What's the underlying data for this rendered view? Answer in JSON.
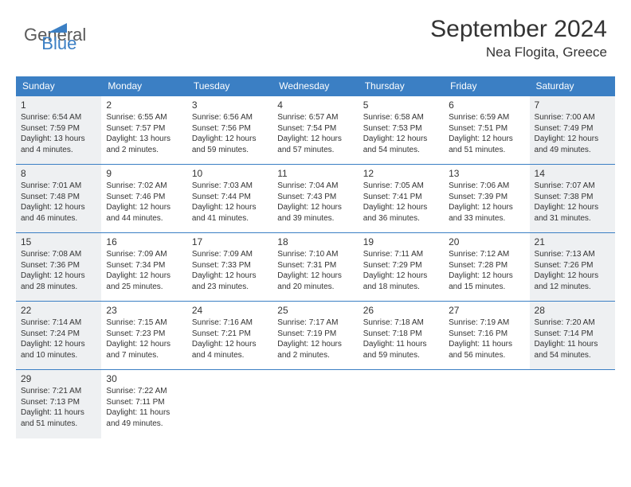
{
  "logo": {
    "part1": "General",
    "part2": "Blue"
  },
  "title": "September 2024",
  "location": "Nea Flogita, Greece",
  "colors": {
    "header_bg": "#3b7fc4",
    "header_text": "#ffffff",
    "shaded_bg": "#eef0f2",
    "text": "#333333",
    "logo_gray": "#5a5a5a",
    "logo_blue": "#3b7fc4"
  },
  "day_headers": [
    "Sunday",
    "Monday",
    "Tuesday",
    "Wednesday",
    "Thursday",
    "Friday",
    "Saturday"
  ],
  "weeks": [
    [
      {
        "num": "1",
        "shade": true,
        "sr": "Sunrise: 6:54 AM",
        "ss": "Sunset: 7:59 PM",
        "dl": "Daylight: 13 hours and 4 minutes."
      },
      {
        "num": "2",
        "shade": false,
        "sr": "Sunrise: 6:55 AM",
        "ss": "Sunset: 7:57 PM",
        "dl": "Daylight: 13 hours and 2 minutes."
      },
      {
        "num": "3",
        "shade": false,
        "sr": "Sunrise: 6:56 AM",
        "ss": "Sunset: 7:56 PM",
        "dl": "Daylight: 12 hours and 59 minutes."
      },
      {
        "num": "4",
        "shade": false,
        "sr": "Sunrise: 6:57 AM",
        "ss": "Sunset: 7:54 PM",
        "dl": "Daylight: 12 hours and 57 minutes."
      },
      {
        "num": "5",
        "shade": false,
        "sr": "Sunrise: 6:58 AM",
        "ss": "Sunset: 7:53 PM",
        "dl": "Daylight: 12 hours and 54 minutes."
      },
      {
        "num": "6",
        "shade": false,
        "sr": "Sunrise: 6:59 AM",
        "ss": "Sunset: 7:51 PM",
        "dl": "Daylight: 12 hours and 51 minutes."
      },
      {
        "num": "7",
        "shade": true,
        "sr": "Sunrise: 7:00 AM",
        "ss": "Sunset: 7:49 PM",
        "dl": "Daylight: 12 hours and 49 minutes."
      }
    ],
    [
      {
        "num": "8",
        "shade": true,
        "sr": "Sunrise: 7:01 AM",
        "ss": "Sunset: 7:48 PM",
        "dl": "Daylight: 12 hours and 46 minutes."
      },
      {
        "num": "9",
        "shade": false,
        "sr": "Sunrise: 7:02 AM",
        "ss": "Sunset: 7:46 PM",
        "dl": "Daylight: 12 hours and 44 minutes."
      },
      {
        "num": "10",
        "shade": false,
        "sr": "Sunrise: 7:03 AM",
        "ss": "Sunset: 7:44 PM",
        "dl": "Daylight: 12 hours and 41 minutes."
      },
      {
        "num": "11",
        "shade": false,
        "sr": "Sunrise: 7:04 AM",
        "ss": "Sunset: 7:43 PM",
        "dl": "Daylight: 12 hours and 39 minutes."
      },
      {
        "num": "12",
        "shade": false,
        "sr": "Sunrise: 7:05 AM",
        "ss": "Sunset: 7:41 PM",
        "dl": "Daylight: 12 hours and 36 minutes."
      },
      {
        "num": "13",
        "shade": false,
        "sr": "Sunrise: 7:06 AM",
        "ss": "Sunset: 7:39 PM",
        "dl": "Daylight: 12 hours and 33 minutes."
      },
      {
        "num": "14",
        "shade": true,
        "sr": "Sunrise: 7:07 AM",
        "ss": "Sunset: 7:38 PM",
        "dl": "Daylight: 12 hours and 31 minutes."
      }
    ],
    [
      {
        "num": "15",
        "shade": true,
        "sr": "Sunrise: 7:08 AM",
        "ss": "Sunset: 7:36 PM",
        "dl": "Daylight: 12 hours and 28 minutes."
      },
      {
        "num": "16",
        "shade": false,
        "sr": "Sunrise: 7:09 AM",
        "ss": "Sunset: 7:34 PM",
        "dl": "Daylight: 12 hours and 25 minutes."
      },
      {
        "num": "17",
        "shade": false,
        "sr": "Sunrise: 7:09 AM",
        "ss": "Sunset: 7:33 PM",
        "dl": "Daylight: 12 hours and 23 minutes."
      },
      {
        "num": "18",
        "shade": false,
        "sr": "Sunrise: 7:10 AM",
        "ss": "Sunset: 7:31 PM",
        "dl": "Daylight: 12 hours and 20 minutes."
      },
      {
        "num": "19",
        "shade": false,
        "sr": "Sunrise: 7:11 AM",
        "ss": "Sunset: 7:29 PM",
        "dl": "Daylight: 12 hours and 18 minutes."
      },
      {
        "num": "20",
        "shade": false,
        "sr": "Sunrise: 7:12 AM",
        "ss": "Sunset: 7:28 PM",
        "dl": "Daylight: 12 hours and 15 minutes."
      },
      {
        "num": "21",
        "shade": true,
        "sr": "Sunrise: 7:13 AM",
        "ss": "Sunset: 7:26 PM",
        "dl": "Daylight: 12 hours and 12 minutes."
      }
    ],
    [
      {
        "num": "22",
        "shade": true,
        "sr": "Sunrise: 7:14 AM",
        "ss": "Sunset: 7:24 PM",
        "dl": "Daylight: 12 hours and 10 minutes."
      },
      {
        "num": "23",
        "shade": false,
        "sr": "Sunrise: 7:15 AM",
        "ss": "Sunset: 7:23 PM",
        "dl": "Daylight: 12 hours and 7 minutes."
      },
      {
        "num": "24",
        "shade": false,
        "sr": "Sunrise: 7:16 AM",
        "ss": "Sunset: 7:21 PM",
        "dl": "Daylight: 12 hours and 4 minutes."
      },
      {
        "num": "25",
        "shade": false,
        "sr": "Sunrise: 7:17 AM",
        "ss": "Sunset: 7:19 PM",
        "dl": "Daylight: 12 hours and 2 minutes."
      },
      {
        "num": "26",
        "shade": false,
        "sr": "Sunrise: 7:18 AM",
        "ss": "Sunset: 7:18 PM",
        "dl": "Daylight: 11 hours and 59 minutes."
      },
      {
        "num": "27",
        "shade": false,
        "sr": "Sunrise: 7:19 AM",
        "ss": "Sunset: 7:16 PM",
        "dl": "Daylight: 11 hours and 56 minutes."
      },
      {
        "num": "28",
        "shade": true,
        "sr": "Sunrise: 7:20 AM",
        "ss": "Sunset: 7:14 PM",
        "dl": "Daylight: 11 hours and 54 minutes."
      }
    ],
    [
      {
        "num": "29",
        "shade": true,
        "sr": "Sunrise: 7:21 AM",
        "ss": "Sunset: 7:13 PM",
        "dl": "Daylight: 11 hours and 51 minutes."
      },
      {
        "num": "30",
        "shade": false,
        "sr": "Sunrise: 7:22 AM",
        "ss": "Sunset: 7:11 PM",
        "dl": "Daylight: 11 hours and 49 minutes."
      },
      {
        "empty": true
      },
      {
        "empty": true
      },
      {
        "empty": true
      },
      {
        "empty": true
      },
      {
        "empty": true
      }
    ]
  ]
}
